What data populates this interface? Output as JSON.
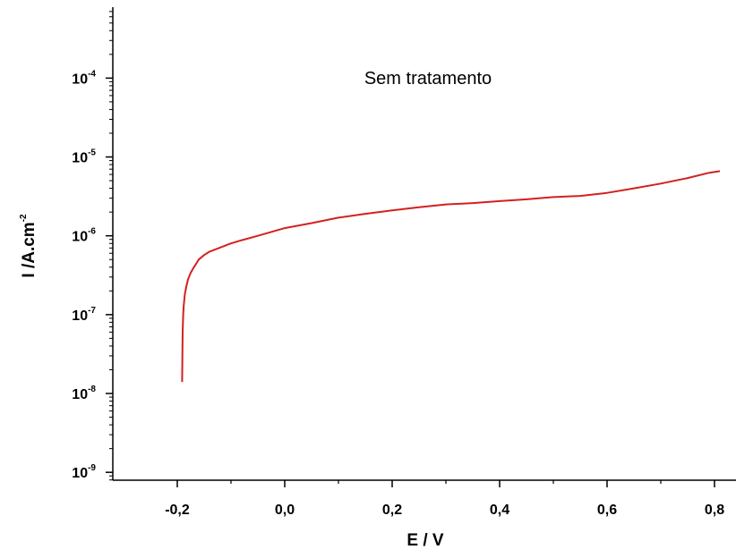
{
  "chart_data": {
    "type": "line",
    "title": "",
    "annotation": "Sem tratamento",
    "xlabel": "E / V",
    "ylabel": {
      "base": "I /A.cm",
      "sup": "-2"
    },
    "xlim": [
      -0.32,
      0.84
    ],
    "ylim_log10": [
      -9.1,
      -3.1
    ],
    "y_scale": "log",
    "grid": false,
    "legend": "none",
    "x_ticks": [
      {
        "value": -0.2,
        "label": "-0,2"
      },
      {
        "value": 0.0,
        "label": "0,0"
      },
      {
        "value": 0.2,
        "label": "0,2"
      },
      {
        "value": 0.4,
        "label": "0,4"
      },
      {
        "value": 0.6,
        "label": "0,6"
      },
      {
        "value": 0.8,
        "label": "0,8"
      }
    ],
    "y_ticks": [
      {
        "value": 1e-09,
        "base": "10",
        "exp": "-9"
      },
      {
        "value": 1e-08,
        "base": "10",
        "exp": "-8"
      },
      {
        "value": 1e-07,
        "base": "10",
        "exp": "-7"
      },
      {
        "value": 1e-06,
        "base": "10",
        "exp": "-6"
      },
      {
        "value": 1e-05,
        "base": "10",
        "exp": "-5"
      },
      {
        "value": 0.0001,
        "base": "10",
        "exp": "-4"
      }
    ],
    "series": [
      {
        "color": "#d42020",
        "points": [
          [
            -0.191,
            1.4e-08
          ],
          [
            -0.1905,
            3e-08
          ],
          [
            -0.19,
            6e-08
          ],
          [
            -0.189,
            1e-07
          ],
          [
            -0.188,
            1.3e-07
          ],
          [
            -0.186,
            1.8e-07
          ],
          [
            -0.183,
            2.3e-07
          ],
          [
            -0.18,
            2.8e-07
          ],
          [
            -0.175,
            3.4e-07
          ],
          [
            -0.17,
            3.9e-07
          ],
          [
            -0.165,
            4.4e-07
          ],
          [
            -0.16,
            5e-07
          ],
          [
            -0.15,
            5.7e-07
          ],
          [
            -0.14,
            6.3e-07
          ],
          [
            -0.12,
            7.1e-07
          ],
          [
            -0.1,
            8e-07
          ],
          [
            -0.08,
            8.8e-07
          ],
          [
            -0.05,
            1e-06
          ],
          [
            0.0,
            1.25e-06
          ],
          [
            0.05,
            1.45e-06
          ],
          [
            0.1,
            1.7e-06
          ],
          [
            0.15,
            1.9e-06
          ],
          [
            0.2,
            2.1e-06
          ],
          [
            0.25,
            2.3e-06
          ],
          [
            0.3,
            2.5e-06
          ],
          [
            0.35,
            2.6e-06
          ],
          [
            0.4,
            2.75e-06
          ],
          [
            0.45,
            2.9e-06
          ],
          [
            0.5,
            3.1e-06
          ],
          [
            0.55,
            3.2e-06
          ],
          [
            0.6,
            3.5e-06
          ],
          [
            0.65,
            4e-06
          ],
          [
            0.7,
            4.6e-06
          ],
          [
            0.75,
            5.4e-06
          ],
          [
            0.79,
            6.3e-06
          ],
          [
            0.81,
            6.6e-06
          ]
        ]
      }
    ]
  }
}
